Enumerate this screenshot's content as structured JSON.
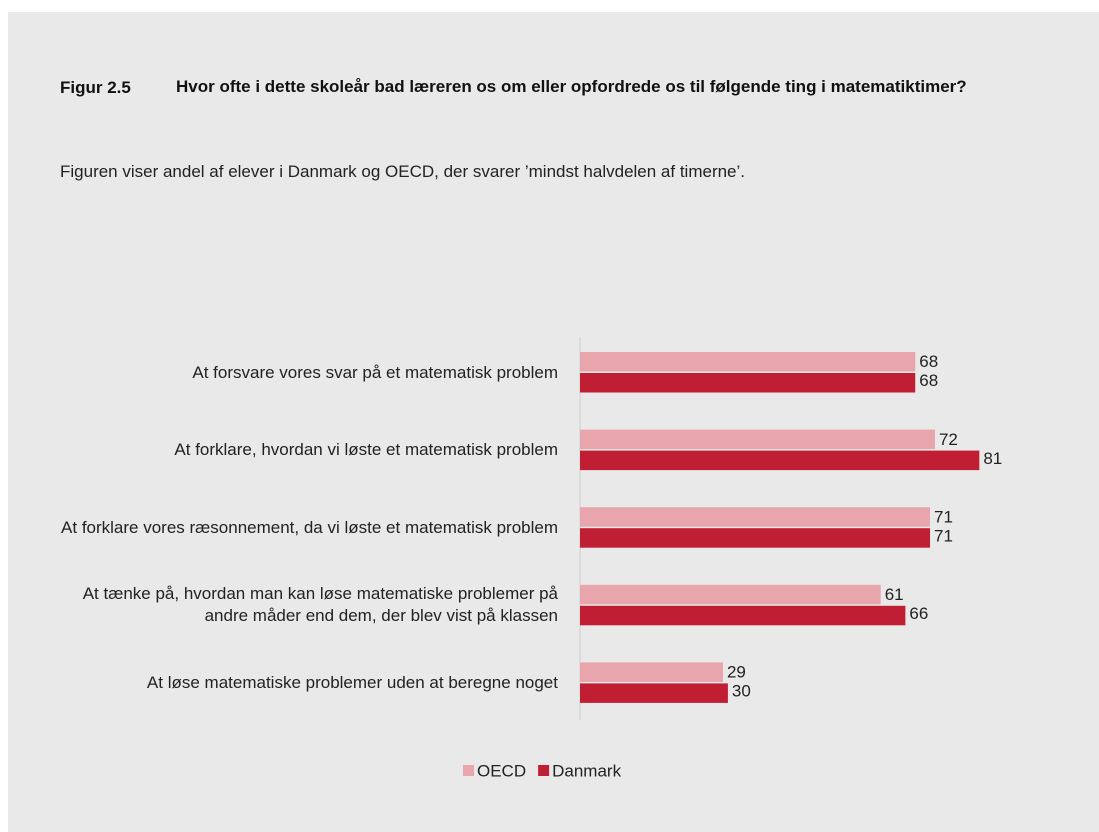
{
  "chart_data": {
    "type": "hbar",
    "figure_label": "Figur 2.5",
    "title": "Hvor ofte i dette skoleår bad læreren os om eller opfordrede os til følgende ting i matematiktimer?",
    "subtitle": "Figuren viser andel af elever i Danmark og OECD, der svarer ’mindst halvdelen af timerne’.",
    "categories": [
      "At forsvare vores svar på et matematisk problem",
      "At forklare, hvordan vi løste et matematisk problem",
      "At forklare vores ræsonnement, da vi løste et matematisk problem",
      "At tænke på, hvordan man kan løse matematiske problemer på andre måder end dem, der blev vist på klassen",
      "At løse matematiske problemer uden at beregne noget"
    ],
    "series": [
      {
        "name": "OECD",
        "color": "#e8a5ab",
        "values": [
          68,
          72,
          71,
          61,
          29
        ]
      },
      {
        "name": "Danmark",
        "color": "#c01f33",
        "values": [
          68,
          81,
          71,
          66,
          30
        ]
      }
    ],
    "xlim": [
      0,
      100
    ]
  }
}
